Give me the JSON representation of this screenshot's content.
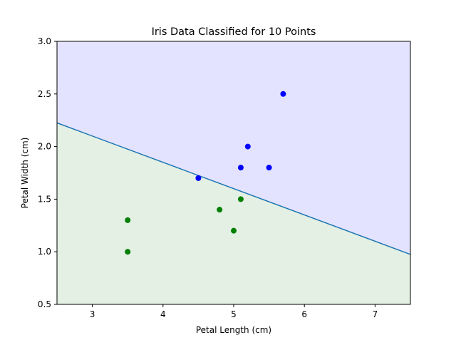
{
  "chart_data": {
    "type": "scatter",
    "title": "Iris Data Classified for 10 Points",
    "xlabel": "Petal Length (cm)",
    "ylabel": "Petal Width (cm)",
    "xlim": [
      2.5,
      7.5
    ],
    "ylim": [
      0.5,
      3.0
    ],
    "xticks": [
      3,
      4,
      5,
      6,
      7
    ],
    "xtick_labels": [
      "3",
      "4",
      "5",
      "6",
      "7"
    ],
    "yticks": [
      0.5,
      1.0,
      1.5,
      2.0,
      2.5,
      3.0
    ],
    "ytick_labels": [
      "0.5",
      "1.0",
      "1.5",
      "2.0",
      "2.5",
      "3.0"
    ],
    "grid": false,
    "decision_boundary": {
      "x": [
        2.5,
        7.5
      ],
      "y": [
        2.225,
        0.975
      ],
      "color": "#1f77b4"
    },
    "regions": [
      {
        "class": "upper",
        "color": "#e3e3ff"
      },
      {
        "class": "lower",
        "color": "#e3f0e3"
      }
    ],
    "series": [
      {
        "color": "#0000ff",
        "points": [
          {
            "x": 4.5,
            "y": 1.7
          },
          {
            "x": 5.1,
            "y": 1.8
          },
          {
            "x": 5.2,
            "y": 2.0
          },
          {
            "x": 5.5,
            "y": 1.8
          },
          {
            "x": 5.7,
            "y": 2.5
          }
        ]
      },
      {
        "color": "#008000",
        "points": [
          {
            "x": 3.5,
            "y": 1.0
          },
          {
            "x": 3.5,
            "y": 1.3
          },
          {
            "x": 4.8,
            "y": 1.4
          },
          {
            "x": 5.0,
            "y": 1.2
          },
          {
            "x": 5.1,
            "y": 1.5
          }
        ]
      }
    ]
  }
}
